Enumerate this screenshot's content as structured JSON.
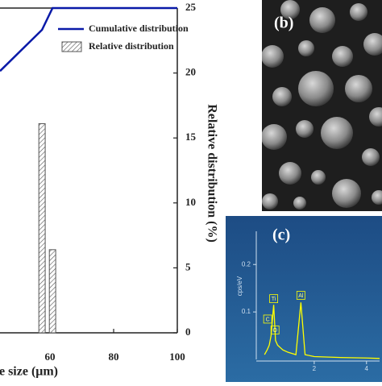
{
  "chart_data": [
    {
      "type": "bar",
      "xlabel": "Particle size (μm)",
      "ylabel": "Relative distribution (%)",
      "xlim": [
        44.3,
        100
      ],
      "xticks": [
        60,
        80,
        100
      ],
      "ylim": [
        0,
        25
      ],
      "yticks": [
        0,
        5,
        10,
        15,
        20,
        25
      ],
      "y2lim": [
        0,
        100
      ],
      "bar_width": 2,
      "series": [
        {
          "name": "Cumulative distribution",
          "type": "line",
          "color": "#0a1aa8",
          "axis": "y2",
          "x": [
            44.3,
            57.5,
            60.8,
            100
          ],
          "values": [
            80.6,
            93.3,
            100,
            100
          ]
        },
        {
          "name": "Relative distribution",
          "type": "bar",
          "color": "#555555",
          "hatch": true,
          "x": [
            57.5,
            60.8
          ],
          "values": [
            16.1,
            6.4
          ]
        }
      ]
    },
    {
      "type": "line",
      "panel_label": "(c)",
      "ylabel": "cps/eV",
      "xlim": [
        0,
        4.5
      ],
      "xticks": [
        2,
        4
      ],
      "ylim": [
        0,
        0.27
      ],
      "yticks": [
        0.1,
        0.2
      ],
      "series": [
        {
          "color": "#ffff00",
          "x": [
            0.1,
            0.2,
            0.28,
            0.35,
            0.45,
            0.52,
            0.6,
            0.8,
            1.0,
            1.3,
            1.49,
            1.65,
            2.0,
            3.0,
            4.0,
            4.5
          ],
          "values": [
            0.01,
            0.02,
            0.03,
            0.05,
            0.115,
            0.04,
            0.03,
            0.02,
            0.015,
            0.01,
            0.12,
            0.01,
            0.006,
            0.004,
            0.003,
            0.002
          ]
        }
      ],
      "annotations": [
        {
          "text": "Ti",
          "x": 0.45,
          "y": 0.128
        },
        {
          "text": "C",
          "x": 0.22,
          "y": 0.085
        },
        {
          "text": "O",
          "x": 0.5,
          "y": 0.062
        },
        {
          "text": "Al",
          "x": 1.49,
          "y": 0.135
        }
      ]
    }
  ],
  "image_panel": {
    "label": "(b)"
  }
}
